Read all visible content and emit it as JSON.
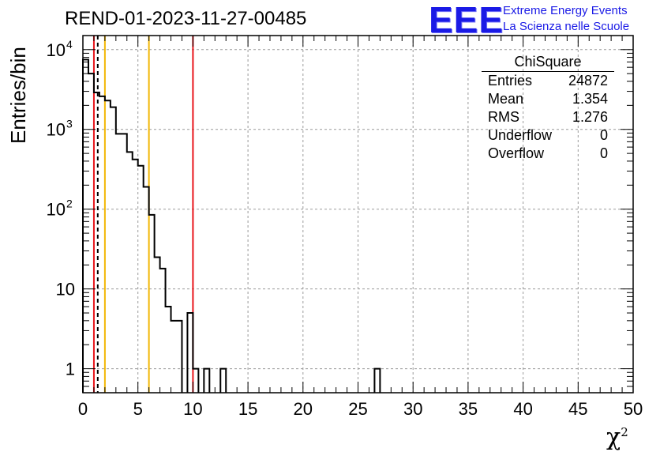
{
  "chart_data": {
    "type": "histogram",
    "title": "REND-01-2023-11-27-00485",
    "xlabel": "χ",
    "xlabel_sup": "2",
    "ylabel": "Entries/bin",
    "xlim": [
      0,
      50
    ],
    "ylim": [
      0.5,
      15000
    ],
    "yscale": "log",
    "grid": true,
    "bin_width": 0.5,
    "x_ticks": [
      "0",
      "5",
      "10",
      "15",
      "20",
      "25",
      "30",
      "35",
      "40",
      "45",
      "50"
    ],
    "y_ticks": [
      {
        "value": 1,
        "label": "1"
      },
      {
        "value": 10,
        "label": "10"
      },
      {
        "value": 100,
        "label": "10",
        "exp": "2"
      },
      {
        "value": 1000,
        "label": "10",
        "exp": "3"
      },
      {
        "value": 10000,
        "label": "10",
        "exp": "4"
      }
    ],
    "bins": [
      {
        "x": 0.0,
        "y": 7500
      },
      {
        "x": 0.5,
        "y": 5000
      },
      {
        "x": 1.0,
        "y": 2900
      },
      {
        "x": 1.5,
        "y": 2600
      },
      {
        "x": 2.0,
        "y": 2300
      },
      {
        "x": 2.5,
        "y": 1900
      },
      {
        "x": 3.0,
        "y": 880
      },
      {
        "x": 3.5,
        "y": 880
      },
      {
        "x": 4.0,
        "y": 520
      },
      {
        "x": 4.5,
        "y": 420
      },
      {
        "x": 5.0,
        "y": 350
      },
      {
        "x": 5.5,
        "y": 190
      },
      {
        "x": 6.0,
        "y": 85
      },
      {
        "x": 6.5,
        "y": 25
      },
      {
        "x": 7.0,
        "y": 18
      },
      {
        "x": 7.5,
        "y": 6
      },
      {
        "x": 8.0,
        "y": 4
      },
      {
        "x": 8.5,
        "y": 4
      },
      {
        "x": 9.0,
        "y": 0
      },
      {
        "x": 9.5,
        "y": 5
      },
      {
        "x": 10.0,
        "y": 1
      },
      {
        "x": 10.5,
        "y": 0
      },
      {
        "x": 11.0,
        "y": 1
      },
      {
        "x": 11.5,
        "y": 0
      },
      {
        "x": 12.0,
        "y": 0
      },
      {
        "x": 12.5,
        "y": 1
      },
      {
        "x": 26.5,
        "y": 1
      }
    ],
    "vertical_lines": [
      {
        "x": 1.0,
        "color": "#e8141a",
        "style": "solid"
      },
      {
        "x": 1.35,
        "color": "#000000",
        "style": "dashed"
      },
      {
        "x": 2.0,
        "color": "#f2b705",
        "style": "solid"
      },
      {
        "x": 6.0,
        "color": "#f2b705",
        "style": "solid"
      },
      {
        "x": 10.0,
        "color": "#e8141a",
        "style": "solid"
      }
    ]
  },
  "stats_box": {
    "title": "ChiSquare",
    "rows": [
      {
        "label": "Entries",
        "value": "24872"
      },
      {
        "label": "Mean",
        "value": "1.354"
      },
      {
        "label": "RMS",
        "value": "1.276"
      },
      {
        "label": "Underflow",
        "value": "0"
      },
      {
        "label": "Overflow",
        "value": "0"
      }
    ]
  },
  "logo": {
    "mark": "EEE",
    "line1": "Extreme Energy Events",
    "line2": "La Scienza nelle Scuole",
    "color": "#1a1ae6"
  }
}
